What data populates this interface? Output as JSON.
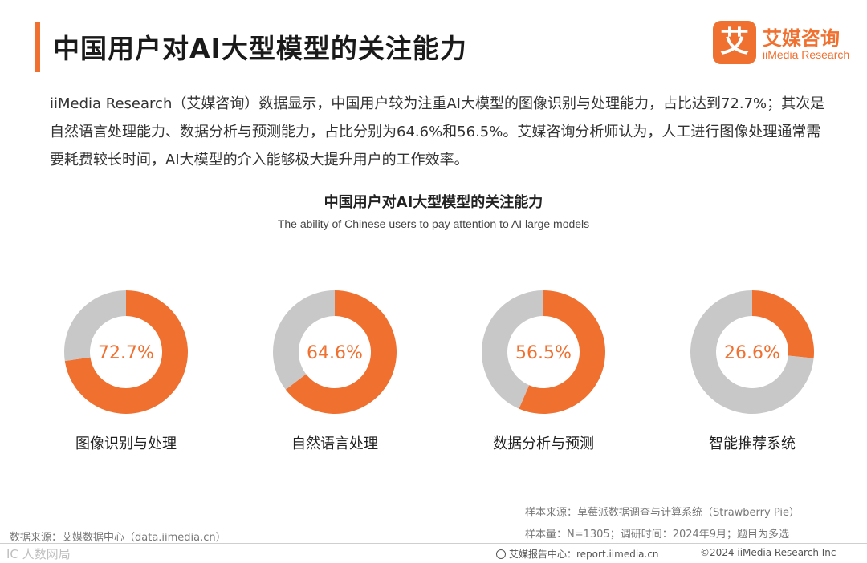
{
  "header": {
    "title": "中国用户对AI大型模型的关注能力",
    "logo_mark": "艾",
    "logo_cn": "艾媒咨询",
    "logo_en": "iiMedia Research"
  },
  "description": "iiMedia Research（艾媒咨询）数据显示，中国用户较为注重AI大模型的图像识别与处理能力，占比达到72.7%；其次是自然语言处理能力、数据分析与预测能力，占比分别为64.6%和56.5%。艾媒咨询分析师认为，人工进行图像处理通常需要耗费较长时间，AI大模型的介入能够极大提升用户的工作效率。",
  "colors": {
    "accent": "#f07030",
    "remainder": "#c8c8c8"
  },
  "chart_data": {
    "type": "pie",
    "title": "中国用户对AI大型模型的关注能力",
    "subtitle": "The ability of Chinese users to pay attention to AI large models",
    "categories": [
      "图像识别与处理",
      "自然语言处理",
      "数据分析与预测",
      "智能推荐系统"
    ],
    "values": [
      72.7,
      64.6,
      56.5,
      26.6
    ],
    "value_labels": [
      "72.7%",
      "64.6%",
      "56.5%",
      "26.6%"
    ],
    "unit": "%",
    "style": "donut"
  },
  "notes": {
    "sample_source": "样本来源：草莓派数据调查与计算系统（Strawberry Pie）",
    "sample_info": "样本量：N=1305；调研时间：2024年9月；题目为多选",
    "data_source": "数据来源：艾媒数据中心（data.iimedia.cn）"
  },
  "footer": {
    "report_center": "艾媒报告中心：report.iimedia.cn",
    "copyright": "©2024 iiMedia Research Inc",
    "watermark": "IC 人数网局"
  }
}
